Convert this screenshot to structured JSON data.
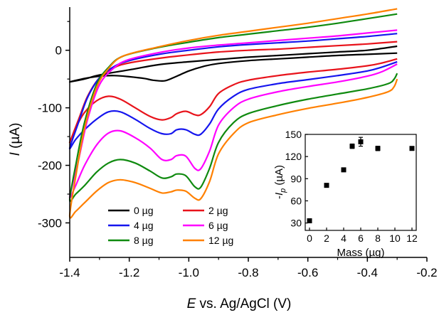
{
  "chart_data": [
    {
      "type": "line",
      "xlabel_italic": "E",
      "xlabel_rest": " vs. Ag/AgCl (V)",
      "ylabel_italic": "I",
      "ylabel_rest": " (µA)",
      "xlim": [
        -1.4,
        -0.2
      ],
      "ylim": [
        -360,
        75
      ],
      "xticks": [
        -1.4,
        -1.2,
        -1.0,
        -0.8,
        -0.6,
        -0.4,
        -0.2
      ],
      "xtick_labels": [
        "-1.4",
        "-1.2",
        "-1.0",
        "-0.8",
        "-0.6",
        "-0.4",
        "-0.2"
      ],
      "yticks": [
        0,
        -100,
        -200,
        -300
      ],
      "ytick_labels": [
        "0",
        "-100",
        "-200",
        "-300"
      ],
      "legend_position": "bottom-left",
      "grid": false,
      "series": [
        {
          "name": "0 µg",
          "color": "#000000",
          "cathodic": [
            [
              -0.3,
              -5
            ],
            [
              -0.4,
              -7
            ],
            [
              -0.5,
              -9
            ],
            [
              -0.6,
              -12
            ],
            [
              -0.7,
              -15
            ],
            [
              -0.8,
              -18
            ],
            [
              -0.9,
              -23
            ],
            [
              -0.95,
              -28
            ],
            [
              -1.0,
              -36
            ],
            [
              -1.04,
              -45
            ],
            [
              -1.08,
              -53
            ],
            [
              -1.12,
              -52
            ],
            [
              -1.15,
              -49
            ],
            [
              -1.2,
              -46
            ],
            [
              -1.25,
              -44
            ],
            [
              -1.3,
              -45
            ],
            [
              -1.35,
              -49
            ],
            [
              -1.4,
              -55
            ]
          ],
          "anodic": [
            [
              -1.4,
              -55
            ],
            [
              -1.35,
              -50
            ],
            [
              -1.3,
              -43
            ],
            [
              -1.2,
              -34
            ],
            [
              -1.1,
              -25
            ],
            [
              -1.0,
              -20
            ],
            [
              -0.9,
              -16
            ],
            [
              -0.8,
              -12
            ],
            [
              -0.7,
              -9
            ],
            [
              -0.6,
              -6
            ],
            [
              -0.5,
              -3
            ],
            [
              -0.4,
              0
            ],
            [
              -0.3,
              7
            ]
          ]
        },
        {
          "name": "2 µg",
          "color": "#e8131b",
          "cathodic": [
            [
              -0.3,
              -15
            ],
            [
              -0.35,
              -22
            ],
            [
              -0.4,
              -27
            ],
            [
              -0.5,
              -33
            ],
            [
              -0.6,
              -38
            ],
            [
              -0.7,
              -44
            ],
            [
              -0.8,
              -52
            ],
            [
              -0.85,
              -60
            ],
            [
              -0.9,
              -75
            ],
            [
              -0.93,
              -98
            ],
            [
              -0.96,
              -112
            ],
            [
              -0.98,
              -112
            ],
            [
              -1.01,
              -106
            ],
            [
              -1.04,
              -110
            ],
            [
              -1.06,
              -117
            ],
            [
              -1.09,
              -121
            ],
            [
              -1.13,
              -115
            ],
            [
              -1.18,
              -100
            ],
            [
              -1.23,
              -85
            ],
            [
              -1.27,
              -80
            ],
            [
              -1.31,
              -88
            ],
            [
              -1.35,
              -108
            ],
            [
              -1.38,
              -135
            ],
            [
              -1.4,
              -160
            ]
          ],
          "anodic": [
            [
              -1.4,
              -160
            ],
            [
              -1.37,
              -120
            ],
            [
              -1.34,
              -80
            ],
            [
              -1.3,
              -48
            ],
            [
              -1.25,
              -30
            ],
            [
              -1.2,
              -22
            ],
            [
              -1.1,
              -14
            ],
            [
              -1.0,
              -8
            ],
            [
              -0.9,
              -3
            ],
            [
              -0.8,
              0
            ],
            [
              -0.7,
              2
            ],
            [
              -0.6,
              5
            ],
            [
              -0.5,
              8
            ],
            [
              -0.4,
              11
            ],
            [
              -0.3,
              15
            ]
          ]
        },
        {
          "name": "4 µg",
          "color": "#1515ee",
          "cathodic": [
            [
              -0.3,
              -20
            ],
            [
              -0.35,
              -29
            ],
            [
              -0.4,
              -36
            ],
            [
              -0.5,
              -44
            ],
            [
              -0.6,
              -51
            ],
            [
              -0.7,
              -58
            ],
            [
              -0.8,
              -68
            ],
            [
              -0.85,
              -80
            ],
            [
              -0.9,
              -102
            ],
            [
              -0.93,
              -128
            ],
            [
              -0.96,
              -146
            ],
            [
              -0.98,
              -146
            ],
            [
              -1.01,
              -138
            ],
            [
              -1.04,
              -138
            ],
            [
              -1.06,
              -145
            ],
            [
              -1.09,
              -145
            ],
            [
              -1.13,
              -136
            ],
            [
              -1.18,
              -120
            ],
            [
              -1.23,
              -107
            ],
            [
              -1.27,
              -107
            ],
            [
              -1.31,
              -120
            ],
            [
              -1.35,
              -138
            ],
            [
              -1.38,
              -155
            ],
            [
              -1.4,
              -170
            ]
          ],
          "anodic": [
            [
              -1.4,
              -170
            ],
            [
              -1.37,
              -125
            ],
            [
              -1.34,
              -82
            ],
            [
              -1.3,
              -48
            ],
            [
              -1.25,
              -28
            ],
            [
              -1.2,
              -18
            ],
            [
              -1.1,
              -7
            ],
            [
              -1.0,
              0
            ],
            [
              -0.9,
              6
            ],
            [
              -0.8,
              10
            ],
            [
              -0.7,
              13
            ],
            [
              -0.6,
              16
            ],
            [
              -0.5,
              20
            ],
            [
              -0.4,
              24
            ],
            [
              -0.3,
              29
            ]
          ]
        },
        {
          "name": "6 µg",
          "color": "#ff00ff",
          "cathodic": [
            [
              -0.3,
              -24
            ],
            [
              -0.35,
              -37
            ],
            [
              -0.4,
              -45
            ],
            [
              -0.5,
              -55
            ],
            [
              -0.6,
              -63
            ],
            [
              -0.7,
              -72
            ],
            [
              -0.8,
              -85
            ],
            [
              -0.85,
              -100
            ],
            [
              -0.9,
              -130
            ],
            [
              -0.93,
              -175
            ],
            [
              -0.96,
              -206
            ],
            [
              -0.98,
              -205
            ],
            [
              -1.01,
              -184
            ],
            [
              -1.04,
              -183
            ],
            [
              -1.06,
              -190
            ],
            [
              -1.09,
              -190
            ],
            [
              -1.13,
              -170
            ],
            [
              -1.18,
              -152
            ],
            [
              -1.23,
              -140
            ],
            [
              -1.27,
              -144
            ],
            [
              -1.31,
              -165
            ],
            [
              -1.35,
              -200
            ],
            [
              -1.38,
              -235
            ],
            [
              -1.4,
              -255
            ]
          ],
          "anodic": [
            [
              -1.4,
              -255
            ],
            [
              -1.37,
              -190
            ],
            [
              -1.34,
              -120
            ],
            [
              -1.3,
              -60
            ],
            [
              -1.25,
              -30
            ],
            [
              -1.2,
              -16
            ],
            [
              -1.1,
              -4
            ],
            [
              -1.0,
              4
            ],
            [
              -0.9,
              9
            ],
            [
              -0.8,
              13
            ],
            [
              -0.7,
              17
            ],
            [
              -0.6,
              21
            ],
            [
              -0.5,
              25
            ],
            [
              -0.4,
              30
            ],
            [
              -0.3,
              35
            ]
          ]
        },
        {
          "name": "8 µg",
          "color": "#0f8a0f",
          "cathodic": [
            [
              -0.3,
              -40
            ],
            [
              -0.31,
              -50
            ],
            [
              -0.33,
              -58
            ],
            [
              -0.4,
              -67
            ],
            [
              -0.5,
              -76
            ],
            [
              -0.6,
              -85
            ],
            [
              -0.7,
              -96
            ],
            [
              -0.8,
              -110
            ],
            [
              -0.85,
              -126
            ],
            [
              -0.9,
              -160
            ],
            [
              -0.93,
              -205
            ],
            [
              -0.96,
              -238
            ],
            [
              -0.98,
              -237
            ],
            [
              -1.01,
              -218
            ],
            [
              -1.04,
              -215
            ],
            [
              -1.06,
              -220
            ],
            [
              -1.09,
              -222
            ],
            [
              -1.13,
              -210
            ],
            [
              -1.18,
              -196
            ],
            [
              -1.23,
              -190
            ],
            [
              -1.27,
              -196
            ],
            [
              -1.31,
              -212
            ],
            [
              -1.35,
              -235
            ],
            [
              -1.38,
              -250
            ],
            [
              -1.4,
              -260
            ]
          ],
          "anodic": [
            [
              -1.4,
              -260
            ],
            [
              -1.38,
              -200
            ],
            [
              -1.35,
              -125
            ],
            [
              -1.31,
              -60
            ],
            [
              -1.27,
              -30
            ],
            [
              -1.22,
              -10
            ],
            [
              -1.1,
              5
            ],
            [
              -1.0,
              14
            ],
            [
              -0.9,
              22
            ],
            [
              -0.8,
              28
            ],
            [
              -0.7,
              34
            ],
            [
              -0.6,
              40
            ],
            [
              -0.5,
              47
            ],
            [
              -0.4,
              55
            ],
            [
              -0.3,
              63
            ]
          ]
        },
        {
          "name": "12 µg",
          "color": "#ff8000",
          "cathodic": [
            [
              -0.3,
              -50
            ],
            [
              -0.31,
              -63
            ],
            [
              -0.33,
              -72
            ],
            [
              -0.4,
              -82
            ],
            [
              -0.5,
              -92
            ],
            [
              -0.6,
              -101
            ],
            [
              -0.7,
              -112
            ],
            [
              -0.8,
              -126
            ],
            [
              -0.85,
              -145
            ],
            [
              -0.9,
              -180
            ],
            [
              -0.93,
              -228
            ],
            [
              -0.96,
              -258
            ],
            [
              -0.98,
              -257
            ],
            [
              -1.01,
              -245
            ],
            [
              -1.04,
              -243
            ],
            [
              -1.06,
              -246
            ],
            [
              -1.09,
              -248
            ],
            [
              -1.13,
              -240
            ],
            [
              -1.18,
              -230
            ],
            [
              -1.23,
              -225
            ],
            [
              -1.27,
              -230
            ],
            [
              -1.31,
              -245
            ],
            [
              -1.35,
              -265
            ],
            [
              -1.38,
              -280
            ],
            [
              -1.4,
              -288
            ]
          ],
          "anodic": [
            [
              -1.4,
              -288
            ],
            [
              -1.38,
              -220
            ],
            [
              -1.35,
              -135
            ],
            [
              -1.31,
              -65
            ],
            [
              -1.27,
              -32
            ],
            [
              -1.22,
              -10
            ],
            [
              -1.1,
              6
            ],
            [
              -1.0,
              17
            ],
            [
              -0.9,
              26
            ],
            [
              -0.8,
              33
            ],
            [
              -0.7,
              40
            ],
            [
              -0.6,
              47
            ],
            [
              -0.5,
              55
            ],
            [
              -0.4,
              63
            ],
            [
              -0.3,
              72
            ]
          ]
        }
      ]
    },
    {
      "type": "scatter",
      "xlabel": "Mass (µg)",
      "ylabel_prefix": "-",
      "ylabel_italic": "I",
      "ylabel_sub": "p",
      "ylabel_rest": " (µA)",
      "xlim": [
        -0.5,
        12.5
      ],
      "ylim": [
        20,
        150
      ],
      "xticks": [
        0,
        2,
        4,
        6,
        8,
        10,
        12
      ],
      "xtick_labels": [
        "0",
        "2",
        "4",
        "6",
        "8",
        "10",
        "12"
      ],
      "yticks": [
        30,
        60,
        90,
        120,
        150
      ],
      "ytick_labels": [
        "30",
        "60",
        "90",
        "120",
        "150"
      ],
      "marker_color": "#000000",
      "points": [
        {
          "x": 0,
          "y": 33,
          "err": 2
        },
        {
          "x": 2,
          "y": 81,
          "err": 2
        },
        {
          "x": 4,
          "y": 102,
          "err": 2
        },
        {
          "x": 5,
          "y": 134,
          "err": 3
        },
        {
          "x": 6,
          "y": 140,
          "err": 6
        },
        {
          "x": 8,
          "y": 131,
          "err": 3
        },
        {
          "x": 12,
          "y": 131,
          "err": 2
        }
      ]
    }
  ]
}
